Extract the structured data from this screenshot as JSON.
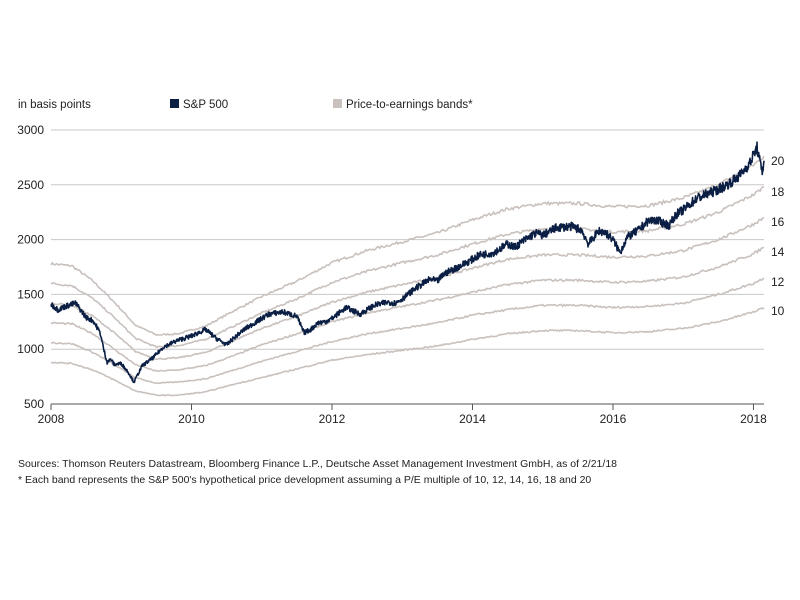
{
  "colors": {
    "sp500": "#0b1f44",
    "bands": "#c9c1bd",
    "grid": "#c8c8c8",
    "axis": "#555555"
  },
  "legend": {
    "unit_label": "in basis points",
    "series_label": "S&P 500",
    "bands_label": "Price-to-earnings bands*"
  },
  "footnotes": {
    "sources": "Sources: Thomson Reuters Datastream, Bloomberg Finance L.P., Deutsche Asset Management Investment GmbH, as of 2/21/18",
    "note": "* Each band represents the S&P 500's hypothetical price development assuming a P/E multiple of 10, 12, 14, 16, 18 and 20"
  },
  "chart_data": {
    "type": "line",
    "title": "",
    "xlabel": "",
    "ylabel": "in basis points",
    "xlim": [
      2008.0,
      2018.15
    ],
    "ylim": [
      500,
      3000
    ],
    "x_ticks": [
      2008,
      2010,
      2012,
      2014,
      2016,
      2018
    ],
    "y_ticks": [
      500,
      1000,
      1500,
      2000,
      2500,
      3000
    ],
    "grid": true,
    "band_labels": [
      "10",
      "12",
      "14",
      "16",
      "18",
      "20"
    ],
    "series": [
      {
        "name": "S&P 500",
        "x": [
          2008.0,
          2008.1,
          2008.2,
          2008.35,
          2008.5,
          2008.6,
          2008.7,
          2008.75,
          2008.8,
          2008.85,
          2008.9,
          2009.0,
          2009.1,
          2009.18,
          2009.3,
          2009.45,
          2009.6,
          2009.8,
          2010.0,
          2010.2,
          2010.35,
          2010.5,
          2010.6,
          2010.75,
          2010.9,
          2011.1,
          2011.3,
          2011.5,
          2011.6,
          2011.7,
          2011.8,
          2011.9,
          2012.0,
          2012.2,
          2012.4,
          2012.6,
          2012.8,
          2012.9,
          2013.0,
          2013.2,
          2013.4,
          2013.5,
          2013.6,
          2013.8,
          2014.0,
          2014.1,
          2014.3,
          2014.5,
          2014.6,
          2014.75,
          2014.9,
          2015.0,
          2015.2,
          2015.4,
          2015.55,
          2015.65,
          2015.7,
          2015.8,
          2015.9,
          2016.0,
          2016.1,
          2016.2,
          2016.35,
          2016.5,
          2016.6,
          2016.8,
          2016.9,
          2017.0,
          2017.2,
          2017.4,
          2017.6,
          2017.8,
          2017.95,
          2018.05,
          2018.1,
          2018.13,
          2018.15
        ],
        "values": [
          1410,
          1360,
          1390,
          1420,
          1290,
          1260,
          1150,
          1000,
          880,
          910,
          860,
          870,
          790,
          700,
          850,
          920,
          1020,
          1080,
          1120,
          1180,
          1100,
          1040,
          1100,
          1180,
          1240,
          1320,
          1340,
          1300,
          1150,
          1180,
          1240,
          1250,
          1280,
          1380,
          1320,
          1400,
          1430,
          1420,
          1460,
          1560,
          1640,
          1620,
          1690,
          1750,
          1820,
          1860,
          1880,
          1960,
          1930,
          2000,
          2060,
          2040,
          2110,
          2120,
          2090,
          1960,
          2000,
          2080,
          2060,
          2000,
          1880,
          2020,
          2080,
          2170,
          2180,
          2130,
          2230,
          2270,
          2380,
          2430,
          2490,
          2580,
          2700,
          2840,
          2680,
          2620,
          2720
        ]
      },
      {
        "name": "P/E 20",
        "x": [
          2008.0,
          2008.3,
          2008.6,
          2008.9,
          2009.2,
          2009.5,
          2009.8,
          2010.2,
          2010.6,
          2011.0,
          2011.5,
          2012.0,
          2012.5,
          2013.0,
          2013.5,
          2014.0,
          2014.5,
          2015.0,
          2015.5,
          2016.0,
          2016.5,
          2017.0,
          2017.5,
          2018.0,
          2018.15
        ],
        "values": [
          1780,
          1760,
          1620,
          1430,
          1220,
          1130,
          1140,
          1210,
          1350,
          1480,
          1620,
          1790,
          1900,
          1980,
          2060,
          2180,
          2280,
          2330,
          2330,
          2300,
          2310,
          2380,
          2500,
          2680,
          2760
        ]
      },
      {
        "name": "P/E 18",
        "x": [
          2008.0,
          2008.3,
          2008.6,
          2008.9,
          2009.2,
          2009.5,
          2009.8,
          2010.2,
          2010.6,
          2011.0,
          2011.5,
          2012.0,
          2012.5,
          2013.0,
          2013.5,
          2014.0,
          2014.5,
          2015.0,
          2015.5,
          2016.0,
          2016.5,
          2017.0,
          2017.5,
          2018.0,
          2018.15
        ],
        "values": [
          1600,
          1580,
          1460,
          1290,
          1100,
          1020,
          1030,
          1090,
          1210,
          1330,
          1460,
          1610,
          1710,
          1790,
          1860,
          1960,
          2050,
          2100,
          2100,
          2070,
          2080,
          2140,
          2250,
          2410,
          2480
        ]
      },
      {
        "name": "P/E 16",
        "x": [
          2008.0,
          2008.3,
          2008.6,
          2008.9,
          2009.2,
          2009.5,
          2009.8,
          2010.2,
          2010.6,
          2011.0,
          2011.5,
          2012.0,
          2012.5,
          2013.0,
          2013.5,
          2014.0,
          2014.5,
          2015.0,
          2015.5,
          2016.0,
          2016.5,
          2017.0,
          2017.5,
          2018.0,
          2018.15
        ],
        "values": [
          1420,
          1400,
          1300,
          1150,
          980,
          910,
          920,
          970,
          1080,
          1190,
          1300,
          1430,
          1520,
          1590,
          1650,
          1740,
          1820,
          1860,
          1860,
          1840,
          1850,
          1900,
          2000,
          2140,
          2200
        ]
      },
      {
        "name": "P/E 14",
        "x": [
          2008.0,
          2008.3,
          2008.6,
          2008.9,
          2009.2,
          2009.5,
          2009.8,
          2010.2,
          2010.6,
          2011.0,
          2011.5,
          2012.0,
          2012.5,
          2013.0,
          2013.5,
          2014.0,
          2014.5,
          2015.0,
          2015.5,
          2016.0,
          2016.5,
          2017.0,
          2017.5,
          2018.0,
          2018.15
        ],
        "values": [
          1240,
          1230,
          1140,
          1000,
          860,
          800,
          810,
          850,
          940,
          1040,
          1140,
          1250,
          1330,
          1390,
          1450,
          1520,
          1590,
          1630,
          1630,
          1610,
          1620,
          1660,
          1750,
          1870,
          1930
        ]
      },
      {
        "name": "P/E 12",
        "x": [
          2008.0,
          2008.3,
          2008.6,
          2008.9,
          2009.2,
          2009.5,
          2009.8,
          2010.2,
          2010.6,
          2011.0,
          2011.5,
          2012.0,
          2012.5,
          2013.0,
          2013.5,
          2014.0,
          2014.5,
          2015.0,
          2015.5,
          2016.0,
          2016.5,
          2017.0,
          2017.5,
          2018.0,
          2018.15
        ],
        "values": [
          1060,
          1050,
          970,
          860,
          740,
          690,
          700,
          730,
          810,
          890,
          980,
          1070,
          1140,
          1190,
          1240,
          1310,
          1360,
          1400,
          1400,
          1380,
          1390,
          1420,
          1500,
          1600,
          1650
        ]
      },
      {
        "name": "P/E 10",
        "x": [
          2008.0,
          2008.3,
          2008.6,
          2008.9,
          2009.2,
          2009.5,
          2009.8,
          2010.2,
          2010.6,
          2011.0,
          2011.5,
          2012.0,
          2012.5,
          2013.0,
          2013.5,
          2014.0,
          2014.5,
          2015.0,
          2015.5,
          2016.0,
          2016.5,
          2017.0,
          2017.5,
          2018.0,
          2018.15
        ],
        "values": [
          880,
          870,
          810,
          720,
          620,
          580,
          580,
          610,
          680,
          740,
          820,
          900,
          950,
          990,
          1030,
          1090,
          1140,
          1170,
          1170,
          1150,
          1160,
          1190,
          1250,
          1340,
          1380
        ]
      }
    ]
  }
}
